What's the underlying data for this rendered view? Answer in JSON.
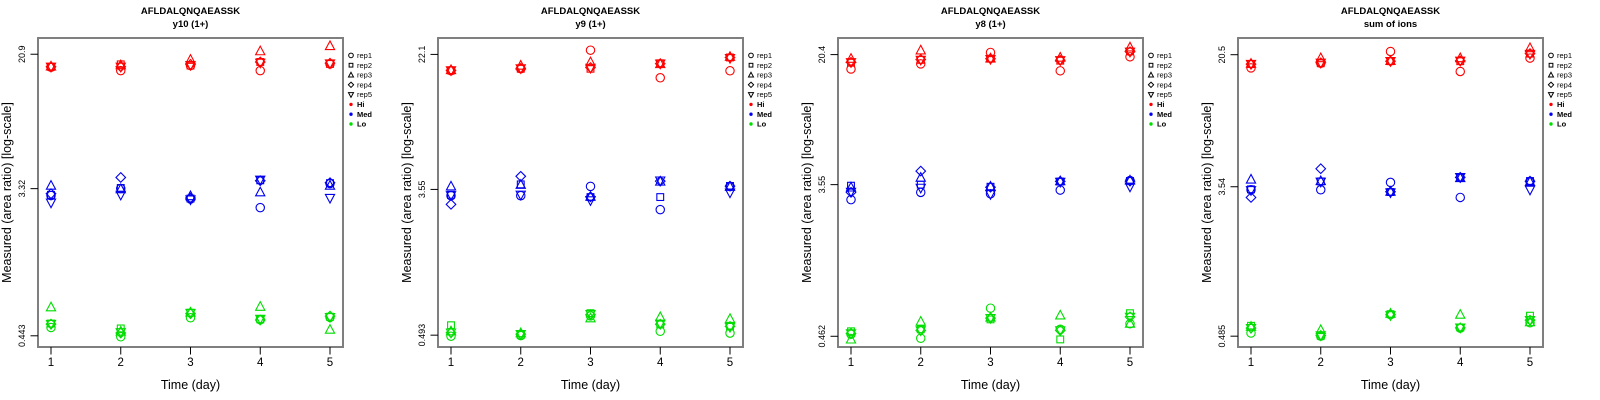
{
  "figure": {
    "ylabel": "Measured (area ratio) [log-scale]",
    "xlabel": "Time (day)",
    "legend": {
      "reps": [
        {
          "label": "rep1",
          "marker": "circle"
        },
        {
          "label": "rep2",
          "marker": "square"
        },
        {
          "label": "rep3",
          "marker": "triangle"
        },
        {
          "label": "rep4",
          "marker": "diamond"
        },
        {
          "label": "rep5",
          "marker": "triangle-down"
        }
      ],
      "groups": [
        {
          "label": "Hi",
          "color": "#FF0000"
        },
        {
          "label": "Med",
          "color": "#0000EE"
        },
        {
          "label": "Lo",
          "color": "#00DD00"
        }
      ]
    },
    "colors": {
      "axis": "#000000",
      "box_border": "#7F7F7F",
      "background": "#FFFFFF"
    }
  },
  "chart_data": [
    {
      "type": "scatter",
      "title": "AFLDALQNQAEASSK",
      "subtitle": "y10 (1+)",
      "xlabel": "Time (day)",
      "ylabel": "Measured (area ratio) [log-scale]",
      "yscale": "log",
      "x": [
        1,
        2,
        3,
        4,
        5
      ],
      "xtick_labels": [
        "1",
        "2",
        "3",
        "4",
        "5"
      ],
      "yticks": [
        20.9,
        3.32,
        0.443
      ],
      "ytick_labels": [
        "20.9",
        "3.32",
        "0.443"
      ],
      "ylim": [
        0.38,
        26.1
      ],
      "rep_order": [
        "rep1",
        "rep2",
        "rep3",
        "rep4",
        "rep5"
      ],
      "series": [
        {
          "name": "Hi",
          "color": "#FF0000",
          "values": [
            [
              17.5,
              17.6,
              17.7,
              17.6,
              17.6
            ],
            [
              16.7,
              18.2,
              18.0,
              17.6,
              17.6
            ],
            [
              17.9,
              17.9,
              19.4,
              18.2,
              18.0
            ],
            [
              16.7,
              18.8,
              21.8,
              18.8,
              18.6
            ],
            [
              18.3,
              18.3,
              23.4,
              18.5,
              18.4
            ]
          ]
        },
        {
          "name": "Med",
          "color": "#0000EE",
          "values": [
            [
              3.02,
              3.05,
              3.46,
              3.1,
              2.74
            ],
            [
              3.32,
              3.35,
              3.3,
              3.87,
              3.05
            ],
            [
              2.88,
              2.9,
              3.0,
              2.92,
              2.86
            ],
            [
              2.56,
              3.72,
              3.16,
              3.7,
              3.75
            ],
            [
              3.56,
              3.58,
              3.46,
              3.6,
              2.92
            ]
          ]
        },
        {
          "name": "Lo",
          "color": "#00DD00",
          "values": [
            [
              0.496,
              0.524,
              0.655,
              0.52,
              0.52
            ],
            [
              0.437,
              0.49,
              0.47,
              0.46,
              0.465
            ],
            [
              0.567,
              0.608,
              0.61,
              0.6,
              0.605
            ],
            [
              0.552,
              0.555,
              0.66,
              0.55,
              0.558
            ],
            [
              0.57,
              0.575,
              0.482,
              0.58,
              0.572
            ]
          ]
        }
      ]
    },
    {
      "type": "scatter",
      "title": "AFLDALQNQAEASSK",
      "subtitle": "y9 (1+)",
      "xlabel": "Time (day)",
      "ylabel": "Measured (area ratio) [log-scale]",
      "yscale": "log",
      "x": [
        1,
        2,
        3,
        4,
        5
      ],
      "xtick_labels": [
        "1",
        "2",
        "3",
        "4",
        "5"
      ],
      "yticks": [
        22.1,
        3.55,
        0.493
      ],
      "ytick_labels": [
        "22.1",
        "3.55",
        "0.493"
      ],
      "ylim": [
        0.42,
        27.6
      ],
      "rep_order": [
        "rep1",
        "rep2",
        "rep3",
        "rep4",
        "rep5"
      ],
      "series": [
        {
          "name": "Hi",
          "color": "#FF0000",
          "values": [
            [
              17.7,
              17.8,
              17.9,
              17.8,
              17.8
            ],
            [
              18.2,
              18.2,
              19.0,
              18.3,
              18.3
            ],
            [
              23.4,
              18.2,
              19.9,
              18.5,
              18.4
            ],
            [
              16.1,
              19.6,
              19.4,
              19.5,
              19.5
            ],
            [
              17.7,
              21.2,
              21.4,
              21.2,
              21.0
            ]
          ]
        },
        {
          "name": "Med",
          "color": "#0000EE",
          "values": [
            [
              3.26,
              3.3,
              3.7,
              2.9,
              3.28
            ],
            [
              3.26,
              3.8,
              3.78,
              4.24,
              3.3
            ],
            [
              3.7,
              3.2,
              3.22,
              3.21,
              3.06
            ],
            [
              2.7,
              3.2,
              3.95,
              3.97,
              4.0
            ],
            [
              3.7,
              3.72,
              3.68,
              3.71,
              3.4
            ]
          ]
        },
        {
          "name": "Lo",
          "color": "#00DD00",
          "values": [
            [
              0.486,
              0.564,
              0.52,
              0.51,
              0.51
            ],
            [
              0.49,
              0.495,
              0.507,
              0.5,
              0.5
            ],
            [
              0.64,
              0.664,
              0.62,
              0.65,
              0.655
            ],
            [
              0.52,
              0.57,
              0.63,
              0.572,
              0.575
            ],
            [
              0.507,
              0.555,
              0.615,
              0.555,
              0.55
            ]
          ]
        }
      ]
    },
    {
      "type": "scatter",
      "title": "AFLDALQNQAEASSK",
      "subtitle": "y8 (1+)",
      "xlabel": "Time (day)",
      "ylabel": "Measured (area ratio) [log-scale]",
      "yscale": "log",
      "x": [
        1,
        2,
        3,
        4,
        5
      ],
      "xtick_labels": [
        "1",
        "2",
        "3",
        "4",
        "5"
      ],
      "yticks": [
        20.4,
        3.55,
        0.462
      ],
      "ytick_labels": [
        "20.4",
        "3.55",
        "0.462"
      ],
      "ylim": [
        0.4,
        25.5
      ],
      "rep_order": [
        "rep1",
        "rep2",
        "rep3",
        "rep4",
        "rep5"
      ],
      "series": [
        {
          "name": "Hi",
          "color": "#FF0000",
          "values": [
            [
              16.8,
              18.3,
              19.3,
              18.4,
              18.4
            ],
            [
              18.0,
              19.0,
              21.6,
              19.1,
              19.0
            ],
            [
              21.0,
              19.3,
              19.4,
              19.3,
              19.2
            ],
            [
              16.4,
              18.8,
              19.6,
              18.9,
              18.9
            ],
            [
              19.8,
              21.3,
              22.5,
              21.2,
              21.2
            ]
          ]
        },
        {
          "name": "Med",
          "color": "#0000EE",
          "values": [
            [
              2.9,
              3.5,
              3.42,
              3.2,
              3.22
            ],
            [
              3.2,
              3.55,
              3.9,
              4.26,
              3.4
            ],
            [
              3.14,
              3.45,
              3.46,
              3.43,
              3.12
            ],
            [
              3.3,
              3.7,
              3.72,
              3.71,
              3.68
            ],
            [
              3.75,
              3.73,
              3.76,
              3.72,
              3.45
            ]
          ]
        },
        {
          "name": "Lo",
          "color": "#00DD00",
          "values": [
            [
              0.475,
              0.494,
              0.443,
              0.48,
              0.48
            ],
            [
              0.45,
              0.508,
              0.563,
              0.5,
              0.5
            ],
            [
              0.674,
              0.58,
              0.595,
              0.59,
              0.59
            ],
            [
              0.508,
              0.443,
              0.612,
              0.5,
              0.5
            ],
            [
              0.547,
              0.63,
              0.548,
              0.6,
              0.6
            ]
          ]
        }
      ]
    },
    {
      "type": "scatter",
      "title": "AFLDALQNQAEASSK",
      "subtitle": "sum of ions",
      "xlabel": "Time (day)",
      "ylabel": "Measured (area ratio) [log-scale]",
      "yscale": "log",
      "x": [
        1,
        2,
        3,
        4,
        5
      ],
      "xtick_labels": [
        "1",
        "2",
        "3",
        "4",
        "5"
      ],
      "yticks": [
        20.5,
        3.54,
        0.485
      ],
      "ytick_labels": [
        "20.5",
        "3.54",
        "0.485"
      ],
      "ylim": [
        0.42,
        25.6
      ],
      "rep_order": [
        "rep1",
        "rep2",
        "rep3",
        "rep4",
        "rep5"
      ],
      "series": [
        {
          "name": "Hi",
          "color": "#FF0000",
          "values": [
            [
              17.2,
              18.1,
              18.2,
              18.1,
              18.1
            ],
            [
              18.3,
              18.3,
              19.6,
              18.4,
              18.4
            ],
            [
              21.4,
              18.8,
              18.9,
              18.8,
              18.8
            ],
            [
              16.4,
              18.8,
              19.6,
              18.9,
              18.9
            ],
            [
              19.6,
              20.8,
              22.4,
              20.8,
              20.7
            ]
          ]
        },
        {
          "name": "Med",
          "color": "#0000EE",
          "values": [
            [
              3.4,
              3.42,
              3.9,
              3.07,
              3.38
            ],
            [
              3.4,
              3.8,
              3.82,
              4.5,
              3.78
            ],
            [
              3.75,
              3.3,
              3.32,
              3.31,
              3.28
            ],
            [
              3.07,
              4.0,
              3.98,
              4.01,
              4.02
            ],
            [
              3.8,
              3.82,
              3.78,
              3.81,
              3.4
            ]
          ]
        },
        {
          "name": "Lo",
          "color": "#00DD00",
          "values": [
            [
              0.506,
              0.557,
              0.55,
              0.54,
              0.54
            ],
            [
              0.485,
              0.487,
              0.527,
              0.49,
              0.49
            ],
            [
              0.646,
              0.65,
              0.655,
              0.645,
              0.64
            ],
            [
              0.54,
              0.545,
              0.646,
              0.542,
              0.543
            ],
            [
              0.58,
              0.637,
              0.585,
              0.6,
              0.6
            ]
          ]
        }
      ]
    }
  ]
}
